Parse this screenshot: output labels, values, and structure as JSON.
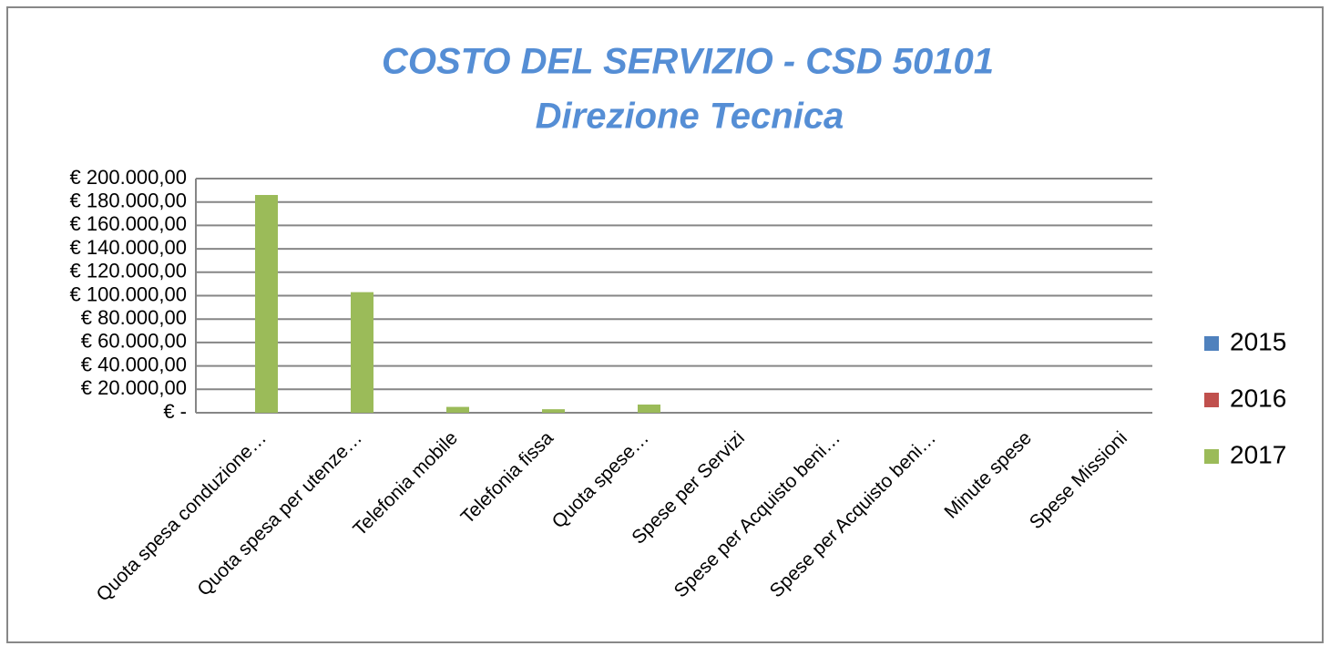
{
  "chart_data": {
    "type": "bar",
    "title": "COSTO  DEL SERVIZIO -  CSD 50101",
    "subtitle": "Direzione Tecnica",
    "categories": [
      "Quota spesa conduzione…",
      "Quota spesa per utenze…",
      "Telefonia mobile",
      "Telefonia fissa",
      "Quota spese…",
      "Spese per Servizi",
      "Spese per Acquisto beni…",
      "Spese per Acquisto beni…",
      "Minute spese",
      "Spese Missioni"
    ],
    "series": [
      {
        "name": "2015",
        "color": "#4f81bd",
        "values": [
          0,
          0,
          0,
          0,
          0,
          0,
          0,
          0,
          0,
          0
        ]
      },
      {
        "name": "2016",
        "color": "#c0504d",
        "values": [
          0,
          0,
          0,
          0,
          0,
          0,
          0,
          0,
          0,
          0
        ]
      },
      {
        "name": "2017",
        "color": "#9bbb59",
        "values": [
          186000,
          103000,
          5000,
          3000,
          7000,
          0,
          0,
          0,
          0,
          0
        ]
      }
    ],
    "ylim": [
      0,
      200000
    ],
    "yticks": [
      {
        "value": 0,
        "label": "€ -"
      },
      {
        "value": 20000,
        "label": "€ 20.000,00"
      },
      {
        "value": 40000,
        "label": "€ 40.000,00"
      },
      {
        "value": 60000,
        "label": "€ 60.000,00"
      },
      {
        "value": 80000,
        "label": "€ 80.000,00"
      },
      {
        "value": 100000,
        "label": "€ 100.000,00"
      },
      {
        "value": 120000,
        "label": "€ 120.000,00"
      },
      {
        "value": 140000,
        "label": "€ 140.000,00"
      },
      {
        "value": 160000,
        "label": "€ 160.000,00"
      },
      {
        "value": 180000,
        "label": "€ 180.000,00"
      },
      {
        "value": 200000,
        "label": "€ 200.000,00"
      }
    ],
    "grid": true,
    "legend": "right"
  }
}
